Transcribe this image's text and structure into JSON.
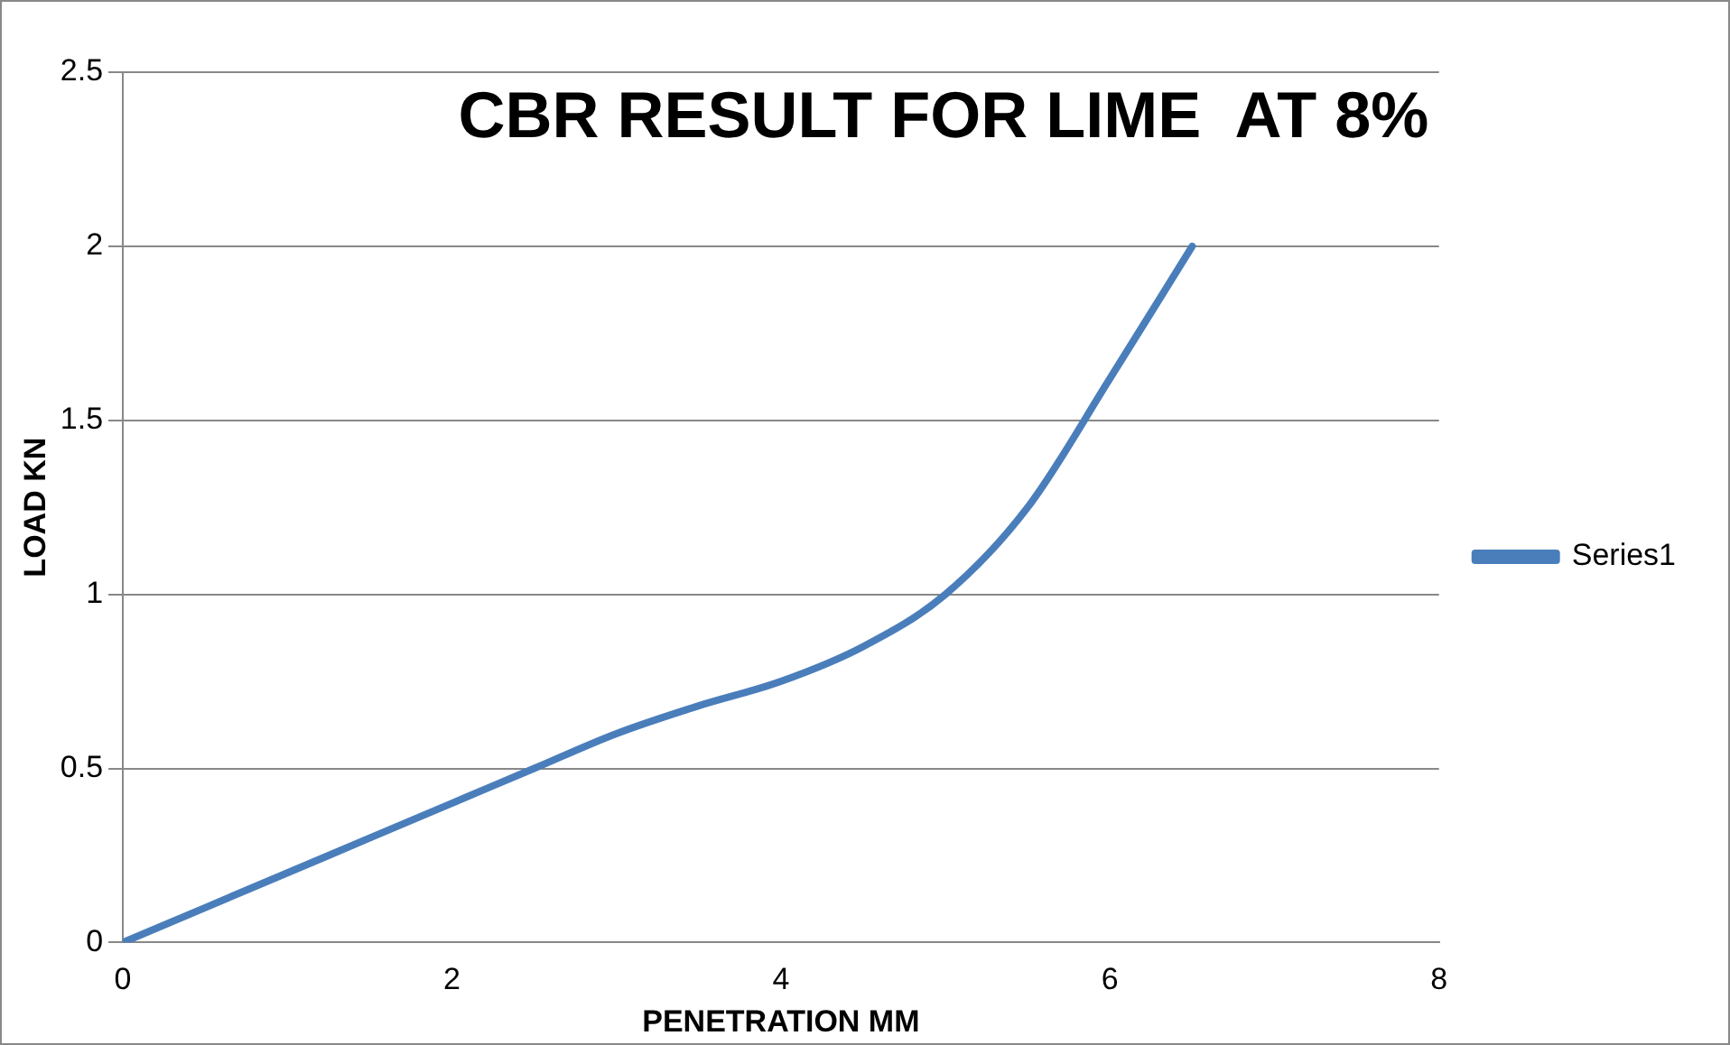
{
  "chart_data": {
    "type": "line",
    "title": "CBR RESULT FOR LIME  AT 8%",
    "xlabel": "PENETRATION MM",
    "ylabel": "LOAD KN",
    "series": [
      {
        "name": "Series1",
        "color": "#4a7ebb",
        "x": [
          0,
          0.5,
          1,
          1.5,
          2,
          2.5,
          3,
          3.5,
          4,
          4.5,
          5,
          5.5,
          6,
          6.5
        ],
        "values": [
          0,
          0.1,
          0.2,
          0.3,
          0.4,
          0.5,
          0.6,
          0.68,
          0.75,
          0.85,
          1.0,
          1.25,
          1.62,
          2.0
        ]
      }
    ],
    "xlim": [
      0,
      8
    ],
    "xticks": [
      0,
      2,
      4,
      6,
      8
    ],
    "ylim": [
      0,
      2.5
    ],
    "yticks": [
      0,
      0.5,
      1,
      1.5,
      2,
      2.5
    ],
    "grid": "y",
    "legend": "right",
    "marker": "none",
    "line_style": "solid"
  }
}
